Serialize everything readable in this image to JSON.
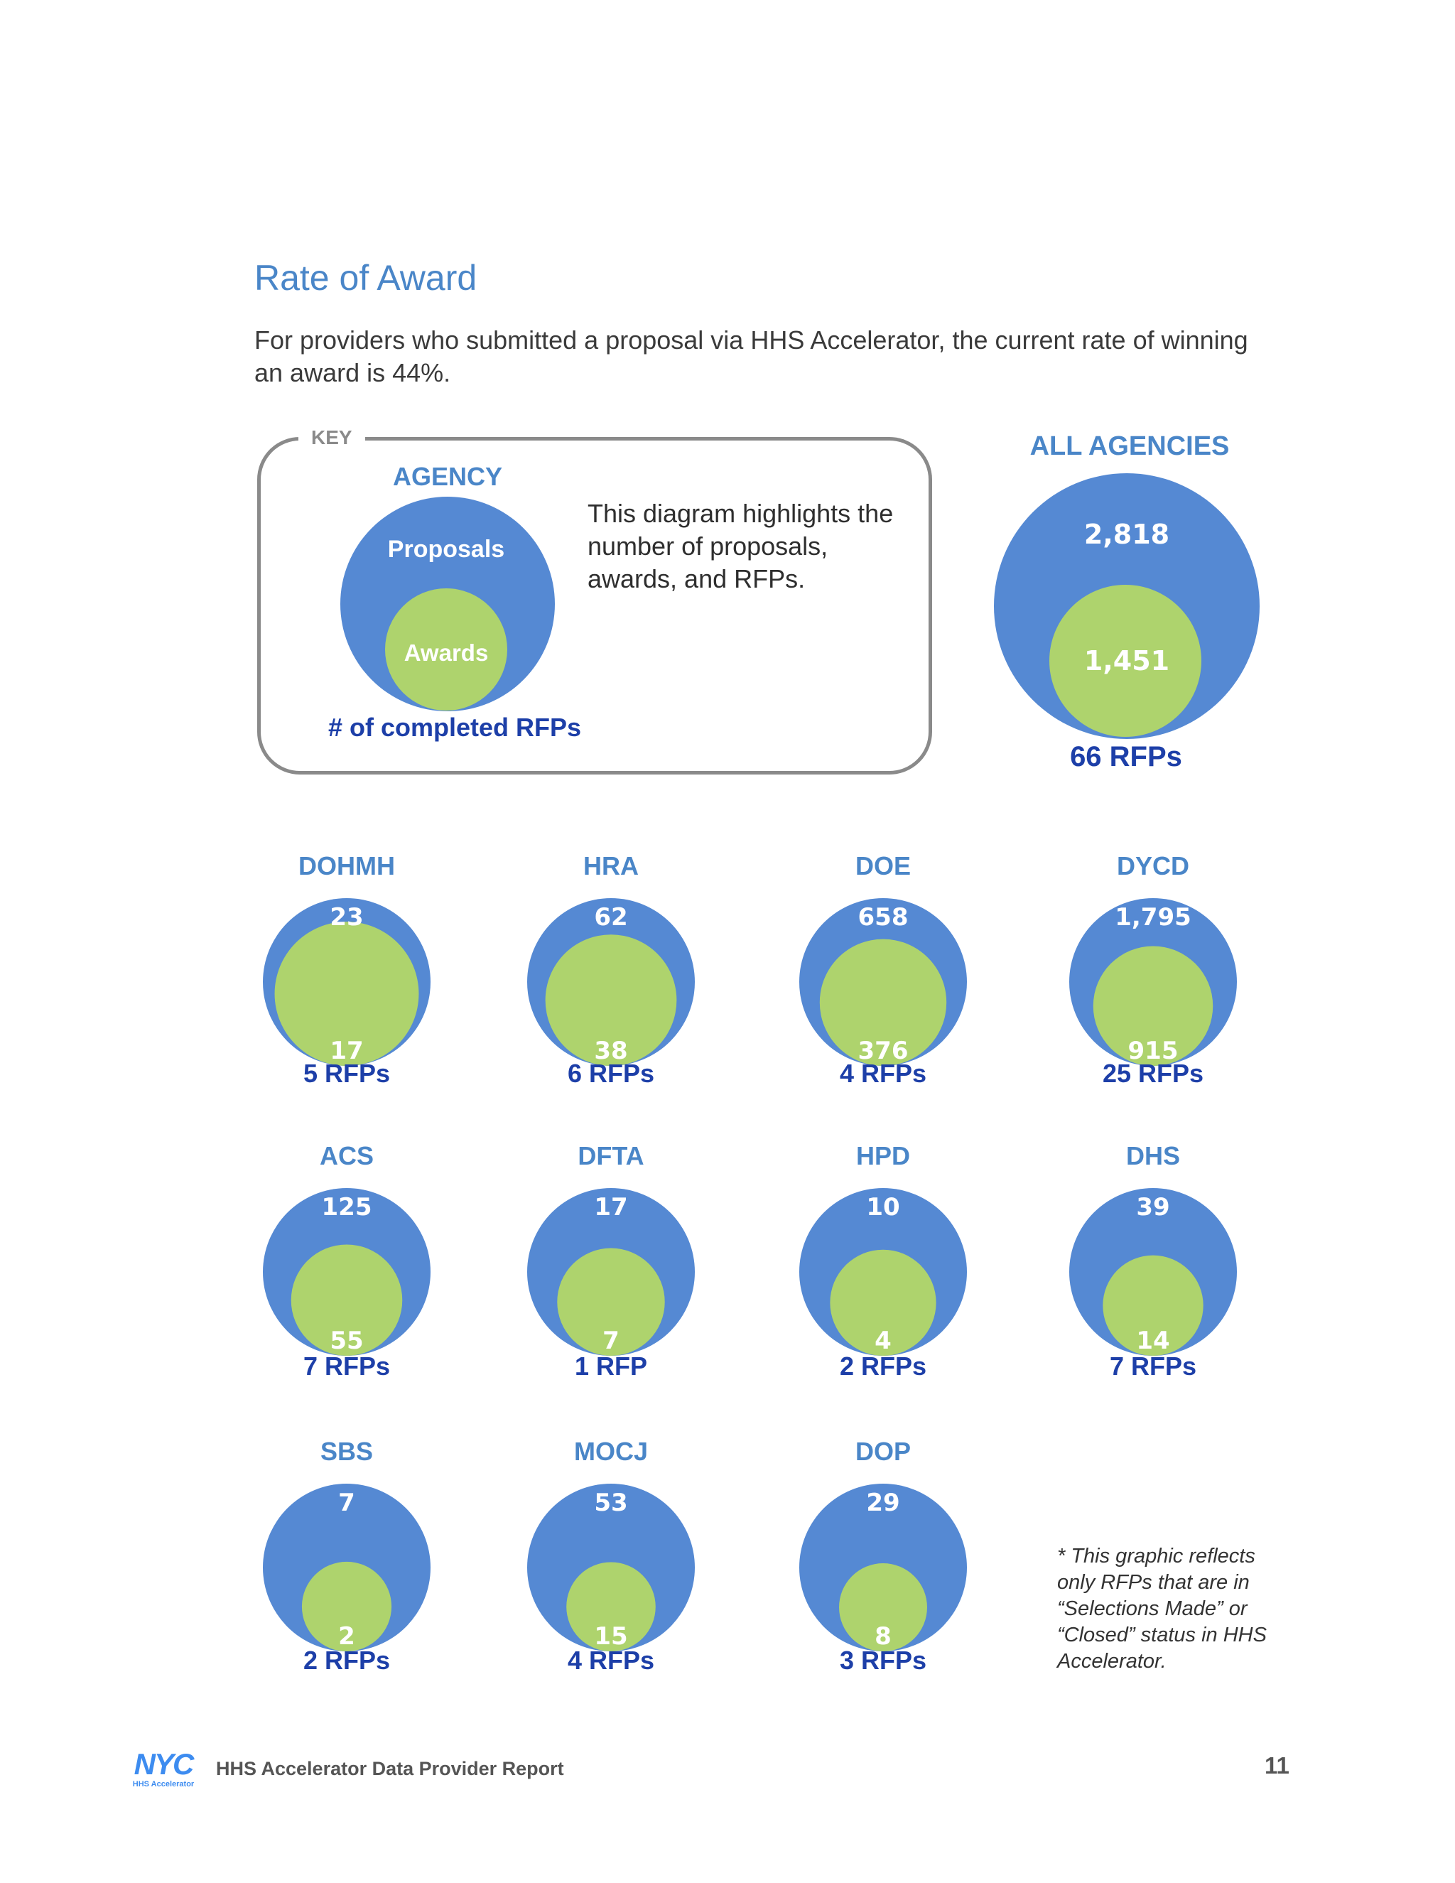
{
  "page": {
    "title": "Rate of Award",
    "intro": "For providers who submitted a proposal via HHS Accelerator, the current rate of winning an award is 44%."
  },
  "key": {
    "label": "KEY",
    "agency": "AGENCY",
    "proposals": "Proposals",
    "awards": "Awards",
    "completed_rfps": "# of completed RFPs",
    "description": "This diagram highlights the number of proposals, awards, and RFPs."
  },
  "colors": {
    "proposals_circle": "#5589d3",
    "awards_circle": "#aed36d",
    "agency_name": "#4a86c8",
    "rfp_count": "#1d3fa8"
  },
  "all_agencies": {
    "name": "ALL AGENCIES",
    "proposals": "2,818",
    "awards": "1,451",
    "rfps": "66 RFPs"
  },
  "agencies": [
    {
      "name": "DOHMH",
      "proposals": "23",
      "awards": "17",
      "rfps": "5 RFPs"
    },
    {
      "name": "HRA",
      "proposals": "62",
      "awards": "38",
      "rfps": "6 RFPs"
    },
    {
      "name": "DOE",
      "proposals": "658",
      "awards": "376",
      "rfps": "4 RFPs"
    },
    {
      "name": "DYCD",
      "proposals": "1,795",
      "awards": "915",
      "rfps": "25 RFPs"
    },
    {
      "name": "ACS",
      "proposals": "125",
      "awards": "55",
      "rfps": "7 RFPs"
    },
    {
      "name": "DFTA",
      "proposals": "17",
      "awards": "7",
      "rfps": "1 RFP"
    },
    {
      "name": "HPD",
      "proposals": "10",
      "awards": "4",
      "rfps": "2 RFPs"
    },
    {
      "name": "DHS",
      "proposals": "39",
      "awards": "14",
      "rfps": "7 RFPs"
    },
    {
      "name": "SBS",
      "proposals": "7",
      "awards": "2",
      "rfps": "2 RFPs"
    },
    {
      "name": "MOCJ",
      "proposals": "53",
      "awards": "15",
      "rfps": "4 RFPs"
    },
    {
      "name": "DOP",
      "proposals": "29",
      "awards": "8",
      "rfps": "3 RFPs"
    }
  ],
  "note": "* This graphic reflects only RFPs that are in “Selections Made” or “Closed” status in HHS Accelerator.",
  "footer": {
    "logo_text": "NYC",
    "logo_sub": "HHS Accelerator",
    "report_title": "HHS Accelerator Data Provider Report",
    "page_number": "11"
  }
}
